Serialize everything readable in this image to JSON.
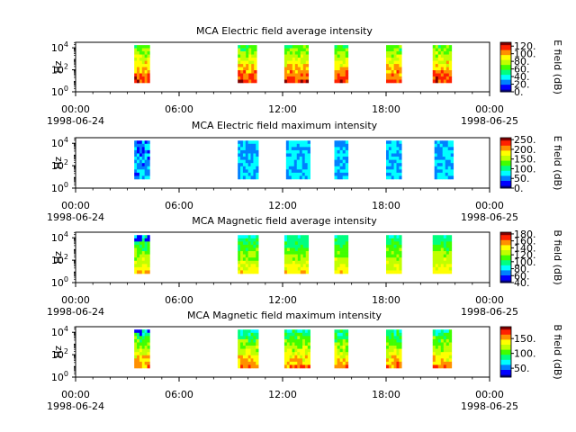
{
  "x_axis": {
    "range_hours": [
      0,
      24
    ],
    "major_ticks": [
      {
        "hour": 0,
        "time": "00:00",
        "date": "1998-06-24"
      },
      {
        "hour": 6,
        "time": "06:00",
        "date": ""
      },
      {
        "hour": 12,
        "time": "12:00",
        "date": ""
      },
      {
        "hour": 18,
        "time": "18:00",
        "date": ""
      },
      {
        "hour": 24,
        "time": "00:00",
        "date": "1998-06-25"
      }
    ],
    "minor_tick_step_hours": 1
  },
  "colors": {
    "colormap": [
      "#00007f",
      "#0000ff",
      "#0080ff",
      "#00ffff",
      "#00ff80",
      "#40ff00",
      "#c0ff00",
      "#ffff00",
      "#ff9000",
      "#ff2000",
      "#800000"
    ],
    "axes": "#000000",
    "background": "#ffffff"
  },
  "chart_data": [
    {
      "type": "heatmap",
      "title": "MCA  Electric field average intensity",
      "ylabel": "Hz",
      "y_scale": "log",
      "y_ticks": [
        {
          "base": "10",
          "exp": "0",
          "value": 1
        },
        {
          "base": "10",
          "exp": "2",
          "value": 100
        },
        {
          "base": "10",
          "exp": "4",
          "value": 10000
        }
      ],
      "colorbar": {
        "label": "E field (dB)",
        "range": [
          0,
          130
        ],
        "ticks": [
          {
            "value": 0,
            "label": "0."
          },
          {
            "value": 20,
            "label": "20."
          },
          {
            "value": 40,
            "label": "40."
          },
          {
            "value": 60,
            "label": "60."
          },
          {
            "value": 80,
            "label": "80."
          },
          {
            "value": 100,
            "label": "100."
          },
          {
            "value": 120,
            "label": "120."
          }
        ]
      },
      "data_blocks_hours": [
        [
          3.4,
          4.3
        ],
        [
          9.4,
          10.5
        ],
        [
          12.1,
          13.5
        ],
        [
          15.0,
          15.8
        ],
        [
          18.0,
          18.9
        ],
        [
          20.7,
          21.8
        ]
      ],
      "color_index_range": [
        4,
        9
      ]
    },
    {
      "type": "heatmap",
      "title": "MCA  Electric field maximum intensity",
      "ylabel": "Hz",
      "y_scale": "log",
      "y_ticks": [
        {
          "base": "10",
          "exp": "0",
          "value": 1
        },
        {
          "base": "10",
          "exp": "2",
          "value": 100
        },
        {
          "base": "10",
          "exp": "4",
          "value": 10000
        }
      ],
      "colorbar": {
        "label": "E field (dB)",
        "range": [
          0,
          260
        ],
        "ticks": [
          {
            "value": 0,
            "label": "0."
          },
          {
            "value": 50,
            "label": "50."
          },
          {
            "value": 100,
            "label": "100."
          },
          {
            "value": 150,
            "label": "150."
          },
          {
            "value": 200,
            "label": "200."
          },
          {
            "value": 250,
            "label": "250."
          }
        ]
      },
      "data_blocks_hours": [
        [
          3.4,
          4.3
        ],
        [
          9.4,
          10.6
        ],
        [
          12.2,
          13.6
        ],
        [
          15.0,
          15.8
        ],
        [
          18.0,
          18.9
        ],
        [
          20.8,
          21.9
        ]
      ],
      "color_index_range": [
        1,
        4
      ]
    },
    {
      "type": "heatmap",
      "title": "MCA  Magnetic field average intensity",
      "ylabel": "Hz",
      "y_scale": "log",
      "y_ticks": [
        {
          "base": "10",
          "exp": "0",
          "value": 1
        },
        {
          "base": "10",
          "exp": "2",
          "value": 100
        },
        {
          "base": "10",
          "exp": "4",
          "value": 10000
        }
      ],
      "colorbar": {
        "label": "B field (dB)",
        "range": [
          40,
          185
        ],
        "ticks": [
          {
            "value": 40,
            "label": "40."
          },
          {
            "value": 60,
            "label": "60."
          },
          {
            "value": 80,
            "label": "80."
          },
          {
            "value": 100,
            "label": "100."
          },
          {
            "value": 120,
            "label": "120."
          },
          {
            "value": 140,
            "label": "140."
          },
          {
            "value": 160,
            "label": "160."
          },
          {
            "value": 180,
            "label": "180."
          }
        ]
      },
      "data_blocks_hours": [
        [
          3.4,
          4.3
        ],
        [
          9.4,
          10.6
        ],
        [
          12.1,
          13.5
        ],
        [
          15.0,
          15.8
        ],
        [
          18.0,
          18.9
        ],
        [
          20.7,
          21.8
        ]
      ],
      "color_index_range": [
        3,
        7
      ]
    },
    {
      "type": "heatmap",
      "title": "MCA  Magnetic field maximum intensity",
      "ylabel": "Hz",
      "y_scale": "log",
      "y_ticks": [
        {
          "base": "10",
          "exp": "0",
          "value": 1
        },
        {
          "base": "10",
          "exp": "2",
          "value": 100
        },
        {
          "base": "10",
          "exp": "4",
          "value": 10000
        }
      ],
      "colorbar": {
        "label": "B field (dB)",
        "range": [
          20,
          190
        ],
        "ticks": [
          {
            "value": 50,
            "label": "50."
          },
          {
            "value": 100,
            "label": "100."
          },
          {
            "value": 150,
            "label": "150."
          }
        ]
      },
      "data_blocks_hours": [
        [
          3.4,
          4.3
        ],
        [
          9.4,
          10.6
        ],
        [
          12.1,
          13.6
        ],
        [
          15.0,
          15.8
        ],
        [
          18.0,
          18.9
        ],
        [
          20.7,
          21.8
        ]
      ],
      "color_index_range": [
        3,
        8
      ]
    }
  ]
}
